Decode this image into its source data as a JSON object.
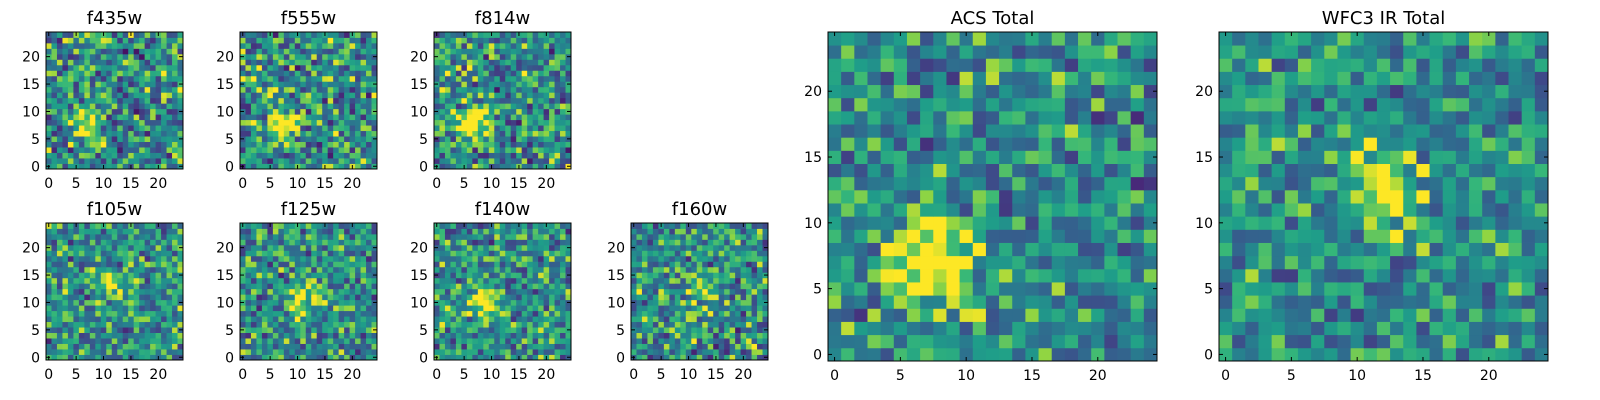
{
  "chart_data": [
    {
      "type": "heatmap",
      "title": "f435w",
      "grid": [
        25,
        25
      ],
      "xlim": [
        0,
        25
      ],
      "ylim": [
        0,
        25
      ],
      "xticks": [
        0,
        5,
        10,
        15,
        20
      ],
      "yticks": [
        0,
        5,
        10,
        15,
        20
      ],
      "colormap": "viridis",
      "value_range": [
        0,
        1
      ],
      "source_peak": {
        "x": 7.5,
        "y": 8.5
      },
      "peak_strength": 0.28,
      "noise_level": 0.75,
      "seed": 11
    },
    {
      "type": "heatmap",
      "title": "f555w",
      "grid": [
        25,
        25
      ],
      "xlim": [
        0,
        25
      ],
      "ylim": [
        0,
        25
      ],
      "xticks": [
        0,
        5,
        10,
        15,
        20
      ],
      "yticks": [
        0,
        5,
        10,
        15,
        20
      ],
      "colormap": "viridis",
      "value_range": [
        0,
        1
      ],
      "source_peak": {
        "x": 7.5,
        "y": 8.0
      },
      "peak_strength": 0.3,
      "noise_level": 0.75,
      "seed": 23
    },
    {
      "type": "heatmap",
      "title": "f814w",
      "grid": [
        25,
        25
      ],
      "xlim": [
        0,
        25
      ],
      "ylim": [
        0,
        25
      ],
      "xticks": [
        0,
        5,
        10,
        15,
        20
      ],
      "yticks": [
        0,
        5,
        10,
        15,
        20
      ],
      "colormap": "viridis",
      "value_range": [
        0,
        1
      ],
      "source_peak": {
        "x": 7.0,
        "y": 8.5
      },
      "peak_strength": 0.32,
      "noise_level": 0.72,
      "seed": 37
    },
    {
      "type": "heatmap",
      "title": "f105w",
      "grid": [
        25,
        25
      ],
      "xlim": [
        0,
        25
      ],
      "ylim": [
        0,
        25
      ],
      "xticks": [
        0,
        5,
        10,
        15,
        20
      ],
      "yticks": [
        0,
        5,
        10,
        15,
        20
      ],
      "colormap": "viridis",
      "value_range": [
        0,
        1
      ],
      "source_peak": {
        "x": 12.0,
        "y": 14.0
      },
      "peak_strength": 0.2,
      "noise_level": 0.65,
      "seed": 41
    },
    {
      "type": "heatmap",
      "title": "f125w",
      "grid": [
        25,
        25
      ],
      "xlim": [
        0,
        25
      ],
      "ylim": [
        0,
        25
      ],
      "xticks": [
        0,
        5,
        10,
        15,
        20
      ],
      "yticks": [
        0,
        5,
        10,
        15,
        20
      ],
      "colormap": "viridis",
      "value_range": [
        0,
        1
      ],
      "source_peak": {
        "x": 12.0,
        "y": 12.0
      },
      "peak_strength": 0.22,
      "noise_level": 0.65,
      "seed": 53
    },
    {
      "type": "heatmap",
      "title": "f140w",
      "grid": [
        25,
        25
      ],
      "xlim": [
        0,
        25
      ],
      "ylim": [
        0,
        25
      ],
      "xticks": [
        0,
        5,
        10,
        15,
        20
      ],
      "yticks": [
        0,
        5,
        10,
        15,
        20
      ],
      "colormap": "viridis",
      "value_range": [
        0,
        1
      ],
      "source_peak": {
        "x": 9.0,
        "y": 10.0
      },
      "peak_strength": 0.25,
      "noise_level": 0.65,
      "seed": 67
    },
    {
      "type": "heatmap",
      "title": "f160w",
      "grid": [
        25,
        25
      ],
      "xlim": [
        0,
        25
      ],
      "ylim": [
        0,
        25
      ],
      "xticks": [
        0,
        5,
        10,
        15,
        20
      ],
      "yticks": [
        0,
        5,
        10,
        15,
        20
      ],
      "colormap": "viridis",
      "value_range": [
        0,
        1
      ],
      "source_peak": {
        "x": 13.0,
        "y": 13.0
      },
      "peak_strength": 0.18,
      "noise_level": 0.7,
      "seed": 79
    },
    {
      "type": "heatmap",
      "title": "ACS Total",
      "grid": [
        25,
        25
      ],
      "xlim": [
        0,
        25
      ],
      "ylim": [
        0,
        25
      ],
      "xticks": [
        0,
        5,
        10,
        15,
        20
      ],
      "yticks": [
        0,
        5,
        10,
        15,
        20
      ],
      "colormap": "viridis",
      "value_range": [
        0,
        1
      ],
      "source_peak": {
        "x": 8.0,
        "y": 8.0
      },
      "peak_strength": 0.4,
      "noise_level": 0.6,
      "seed": 97
    },
    {
      "type": "heatmap",
      "title": "WFC3 IR Total",
      "grid": [
        25,
        25
      ],
      "xlim": [
        0,
        25
      ],
      "ylim": [
        0,
        25
      ],
      "xticks": [
        0,
        5,
        10,
        15,
        20
      ],
      "yticks": [
        0,
        5,
        10,
        15,
        20
      ],
      "colormap": "viridis",
      "value_range": [
        0,
        1
      ],
      "source_peak": {
        "x": 12.5,
        "y": 13.0
      },
      "peak_strength": 0.3,
      "noise_level": 0.55,
      "seed": 113
    }
  ]
}
